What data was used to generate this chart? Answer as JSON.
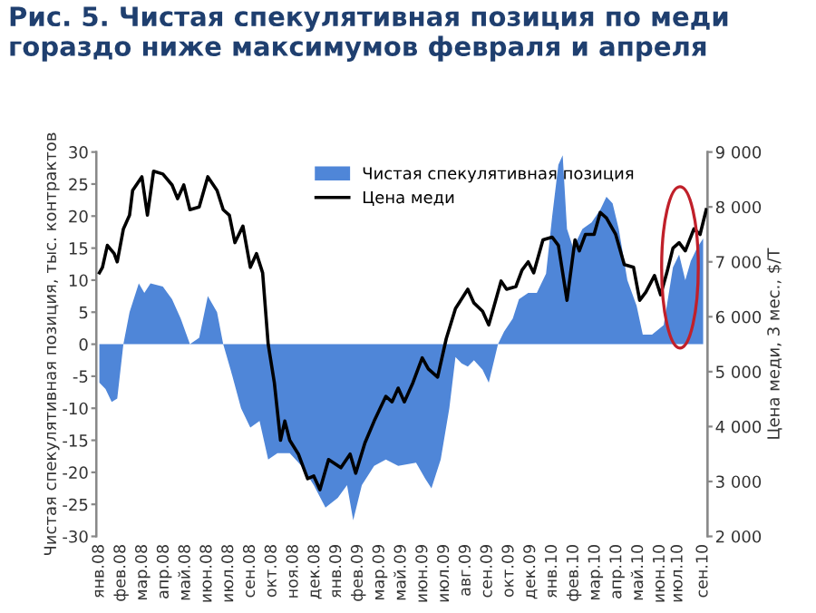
{
  "chart_data": {
    "type": "area",
    "title": "Рис. 5. Чистая спекулятивная позиция по меди гораздо ниже максимумов февраля и апреля",
    "ylabel": "Чистая спекулятивная позиция, тыс. контрактов",
    "y2label": "Цена меди, 3 мес., $/Т",
    "xlim": [
      "2007-12-27",
      "2010-09-14"
    ],
    "xticks": [
      {
        "value": "2008-01-01",
        "label": "янв.08"
      },
      {
        "value": "2008-02-05",
        "label": "фев.08"
      },
      {
        "value": "2008-03-11",
        "label": "мар.08"
      },
      {
        "value": "2008-04-15",
        "label": "апр.08"
      },
      {
        "value": "2008-05-20",
        "label": "май.08"
      },
      {
        "value": "2008-06-24",
        "label": "июн.08"
      },
      {
        "value": "2008-07-29",
        "label": "июл.08"
      },
      {
        "value": "2008-09-02",
        "label": "сен.08"
      },
      {
        "value": "2008-10-07",
        "label": "окт.08"
      },
      {
        "value": "2008-11-11",
        "label": "ноя.08"
      },
      {
        "value": "2008-12-16",
        "label": "дек.08"
      },
      {
        "value": "2009-01-20",
        "label": "янв.09"
      },
      {
        "value": "2009-02-24",
        "label": "фев.09"
      },
      {
        "value": "2009-03-31",
        "label": "мар.09"
      },
      {
        "value": "2009-05-05",
        "label": "май.09"
      },
      {
        "value": "2009-06-09",
        "label": "июн.09"
      },
      {
        "value": "2009-07-14",
        "label": "июл.09"
      },
      {
        "value": "2009-08-18",
        "label": "авг.09"
      },
      {
        "value": "2009-09-22",
        "label": "сен.09"
      },
      {
        "value": "2009-10-27",
        "label": "окт.09"
      },
      {
        "value": "2009-12-01",
        "label": "дек.09"
      },
      {
        "value": "2010-01-05",
        "label": "янв.10"
      },
      {
        "value": "2010-02-09",
        "label": "фев.10"
      },
      {
        "value": "2010-03-16",
        "label": "мар.10"
      },
      {
        "value": "2010-04-20",
        "label": "апр.10"
      },
      {
        "value": "2010-05-25",
        "label": "май.10"
      },
      {
        "value": "2010-06-29",
        "label": "июн.10"
      },
      {
        "value": "2010-07-28",
        "label": "июл.10"
      },
      {
        "value": "2010-09-07",
        "label": "сен.10"
      }
    ],
    "ylim": [
      -30,
      30
    ],
    "yticks": [
      -30,
      -25,
      -20,
      -15,
      -10,
      -5,
      0,
      5,
      10,
      15,
      20,
      25,
      30
    ],
    "y2lim": [
      2000,
      9000
    ],
    "y2ticks": [
      {
        "value": 2000,
        "label": "2 000"
      },
      {
        "value": 3000,
        "label": "3 000"
      },
      {
        "value": 4000,
        "label": "4 000"
      },
      {
        "value": 5000,
        "label": "5 000"
      },
      {
        "value": 6000,
        "label": "6 000"
      },
      {
        "value": 7000,
        "label": "7 000"
      },
      {
        "value": 8000,
        "label": "8 000"
      },
      {
        "value": 9000,
        "label": "9 000"
      }
    ],
    "legend": "top",
    "grid": false,
    "series": [
      {
        "name": "Чистая спекулятивная позиция",
        "color": "#4f86d8",
        "x": [
          "2008-01-01",
          "2008-01-11",
          "2008-01-21",
          "2008-01-30",
          "2008-02-09",
          "2008-02-19",
          "2008-03-05",
          "2008-03-14",
          "2008-03-24",
          "2008-04-13",
          "2008-04-28",
          "2008-05-12",
          "2008-05-27",
          "2008-06-11",
          "2008-06-25",
          "2008-07-10",
          "2008-07-20",
          "2008-08-04",
          "2008-08-18",
          "2008-09-02",
          "2008-09-17",
          "2008-10-01",
          "2008-10-16",
          "2008-11-05",
          "2008-11-24",
          "2008-12-14",
          "2009-01-02",
          "2009-01-22",
          "2009-02-06",
          "2009-02-16",
          "2009-03-02",
          "2009-03-22",
          "2009-04-10",
          "2009-04-30",
          "2009-05-29",
          "2009-06-13",
          "2009-06-23",
          "2009-07-08",
          "2009-07-22",
          "2009-08-01",
          "2009-08-11",
          "2009-08-21",
          "2009-08-31",
          "2009-09-14",
          "2009-09-24",
          "2009-10-04",
          "2009-10-09",
          "2009-10-19",
          "2009-11-02",
          "2009-11-12",
          "2009-11-27",
          "2009-12-11",
          "2009-12-26",
          "2010-01-05",
          "2010-01-15",
          "2010-01-22",
          "2010-01-29",
          "2010-02-08",
          "2010-02-23",
          "2010-03-10",
          "2010-03-24",
          "2010-04-03",
          "2010-04-13",
          "2010-04-23",
          "2010-05-07",
          "2010-05-22",
          "2010-06-01",
          "2010-06-16",
          "2010-07-05",
          "2010-07-20",
          "2010-07-30",
          "2010-08-09",
          "2010-08-18",
          "2010-08-28",
          "2010-09-07"
        ],
        "values": [
          -6,
          -7,
          -9,
          -8.5,
          0,
          5,
          9.5,
          8,
          9.5,
          9,
          7,
          4,
          0,
          1,
          7.5,
          5,
          0,
          -5,
          -10,
          -13,
          -12,
          -18,
          -17,
          -17,
          -19,
          -22,
          -25.5,
          -24,
          -22,
          -27.5,
          -22,
          -19,
          -18,
          -19,
          -18.5,
          -21,
          -22.5,
          -18,
          -10,
          -2,
          -3,
          -3.5,
          -2.5,
          -4,
          -6,
          -2,
          0,
          2,
          4,
          7,
          8,
          8,
          11,
          20,
          28,
          29.5,
          18,
          15,
          18,
          19,
          21,
          23,
          22,
          18,
          10,
          6,
          1.5,
          1.5,
          3,
          12,
          14,
          10,
          13,
          15,
          16.5
        ]
      },
      {
        "name": "Цена меди",
        "type": "line",
        "axis": "y2",
        "color": "#000000",
        "x": [
          "2008-01-01",
          "2008-01-06",
          "2008-01-14",
          "2008-01-25",
          "2008-01-30",
          "2008-02-09",
          "2008-02-19",
          "2008-02-24",
          "2008-03-10",
          "2008-03-19",
          "2008-03-29",
          "2008-04-13",
          "2008-04-28",
          "2008-05-07",
          "2008-05-17",
          "2008-05-27",
          "2008-06-11",
          "2008-06-25",
          "2008-07-10",
          "2008-07-20",
          "2008-07-30",
          "2008-08-08",
          "2008-08-21",
          "2008-09-02",
          "2008-09-12",
          "2008-09-22",
          "2008-10-01",
          "2008-10-11",
          "2008-10-21",
          "2008-10-28",
          "2008-11-05",
          "2008-11-19",
          "2008-12-04",
          "2008-12-14",
          "2008-12-24",
          "2009-01-07",
          "2009-01-27",
          "2009-02-11",
          "2009-02-20",
          "2009-03-07",
          "2009-03-22",
          "2009-04-10",
          "2009-04-20",
          "2009-04-30",
          "2009-05-10",
          "2009-05-24",
          "2009-06-08",
          "2009-06-18",
          "2009-07-03",
          "2009-07-17",
          "2009-08-01",
          "2009-08-21",
          "2009-08-31",
          "2009-09-14",
          "2009-09-24",
          "2009-10-04",
          "2009-10-14",
          "2009-10-23",
          "2009-11-07",
          "2009-11-17",
          "2009-11-27",
          "2009-12-06",
          "2009-12-21",
          "2010-01-05",
          "2010-01-15",
          "2010-01-29",
          "2010-02-11",
          "2010-02-18",
          "2010-02-28",
          "2010-03-14",
          "2010-03-24",
          "2010-04-03",
          "2010-04-18",
          "2010-05-02",
          "2010-05-17",
          "2010-05-27",
          "2010-06-06",
          "2010-06-20",
          "2010-06-30",
          "2010-07-10",
          "2010-07-20",
          "2010-07-30",
          "2010-08-09",
          "2010-08-23",
          "2010-09-02",
          "2010-09-12"
        ],
        "values": [
          6800,
          6900,
          7300,
          7150,
          7000,
          7600,
          7850,
          8300,
          8550,
          7850,
          8650,
          8600,
          8400,
          8150,
          8400,
          7950,
          8000,
          8550,
          8300,
          7950,
          7850,
          7350,
          7650,
          6900,
          7150,
          6800,
          5500,
          4800,
          3750,
          4100,
          3750,
          3500,
          3050,
          3100,
          2850,
          3400,
          3250,
          3500,
          3150,
          3700,
          4100,
          4550,
          4450,
          4700,
          4450,
          4800,
          5250,
          5050,
          4900,
          5600,
          6150,
          6500,
          6250,
          6100,
          5850,
          6250,
          6650,
          6500,
          6550,
          6850,
          7000,
          6800,
          7400,
          7450,
          7300,
          6300,
          7400,
          7200,
          7500,
          7500,
          7900,
          7800,
          7500,
          6950,
          6900,
          6300,
          6450,
          6750,
          6400,
          6800,
          7250,
          7350,
          7200,
          7600,
          7500,
          7950
        ]
      }
    ]
  }
}
